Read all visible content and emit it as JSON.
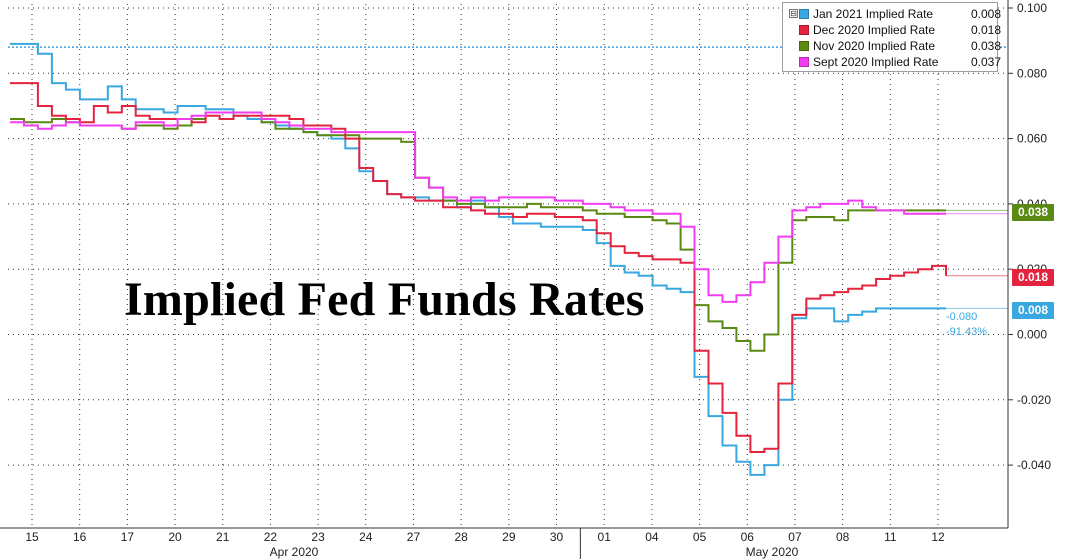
{
  "chart_data": {
    "type": "line",
    "title": "Implied Fed Funds Rates",
    "xlabel": "",
    "ylabel": "",
    "ylim": [
      -0.05,
      0.1
    ],
    "y_ticks": [
      "0.100",
      "0.080",
      "0.060",
      "0.040",
      "0.020",
      "0.000",
      "-0.020",
      "-0.040"
    ],
    "x_tick_labels": [
      "15",
      "16",
      "17",
      "20",
      "21",
      "22",
      "23",
      "24",
      "27",
      "28",
      "29",
      "30",
      "01",
      "04",
      "05",
      "06",
      "07",
      "08",
      "11",
      "12"
    ],
    "month_labels": [
      "Apr 2020",
      "May 2020"
    ],
    "reference_line": {
      "value": 0.088,
      "color": "#3aa0e6",
      "style": "dotted"
    },
    "legend_position": "top-right",
    "grid": true,
    "series": [
      {
        "name": "Jan 2021 Implied Rate",
        "last_value": "0.008",
        "color": "#39a7e0",
        "values": [
          0.089,
          0.089,
          0.086,
          0.077,
          0.075,
          0.072,
          0.072,
          0.076,
          0.072,
          0.069,
          0.069,
          0.068,
          0.07,
          0.07,
          0.069,
          0.069,
          0.067,
          0.066,
          0.065,
          0.064,
          0.063,
          0.062,
          0.061,
          0.06,
          0.057,
          0.05,
          0.047,
          0.043,
          0.042,
          0.042,
          0.041,
          0.041,
          0.039,
          0.041,
          0.039,
          0.036,
          0.034,
          0.034,
          0.033,
          0.033,
          0.033,
          0.032,
          0.028,
          0.021,
          0.019,
          0.018,
          0.015,
          0.014,
          0.013,
          -0.013,
          -0.025,
          -0.034,
          -0.039,
          -0.043,
          -0.04,
          -0.02,
          0.005,
          0.008,
          0.008,
          0.004,
          0.006,
          0.007,
          0.008,
          0.008,
          0.008,
          0.008,
          0.008,
          0.008
        ]
      },
      {
        "name": "Dec 2020 Implied Rate",
        "last_value": "0.018",
        "color": "#e4233f",
        "values": [
          0.077,
          0.077,
          0.07,
          0.067,
          0.066,
          0.065,
          0.07,
          0.068,
          0.07,
          0.067,
          0.066,
          0.066,
          0.066,
          0.065,
          0.067,
          0.066,
          0.067,
          0.067,
          0.067,
          0.067,
          0.066,
          0.064,
          0.064,
          0.063,
          0.06,
          0.051,
          0.047,
          0.043,
          0.042,
          0.041,
          0.041,
          0.039,
          0.039,
          0.038,
          0.037,
          0.037,
          0.036,
          0.037,
          0.037,
          0.036,
          0.036,
          0.035,
          0.031,
          0.027,
          0.025,
          0.024,
          0.023,
          0.023,
          0.022,
          -0.005,
          -0.015,
          -0.024,
          -0.031,
          -0.036,
          -0.035,
          -0.015,
          0.006,
          0.011,
          0.012,
          0.013,
          0.014,
          0.015,
          0.017,
          0.018,
          0.019,
          0.02,
          0.021,
          0.018
        ]
      },
      {
        "name": "Nov 2020 Implied Rate",
        "last_value": "0.038",
        "color": "#5b8a14",
        "values": [
          0.066,
          0.065,
          0.065,
          0.066,
          0.065,
          0.064,
          0.064,
          0.064,
          0.063,
          0.064,
          0.064,
          0.063,
          0.064,
          0.066,
          0.068,
          0.068,
          0.068,
          0.068,
          0.065,
          0.063,
          0.063,
          0.062,
          0.061,
          0.061,
          0.061,
          0.06,
          0.06,
          0.06,
          0.059,
          0.048,
          0.045,
          0.041,
          0.04,
          0.04,
          0.039,
          0.039,
          0.039,
          0.04,
          0.039,
          0.039,
          0.039,
          0.038,
          0.037,
          0.037,
          0.036,
          0.036,
          0.035,
          0.034,
          0.026,
          0.009,
          0.004,
          0.002,
          -0.002,
          -0.005,
          0.0,
          0.022,
          0.035,
          0.036,
          0.036,
          0.035,
          0.038,
          0.038,
          0.038,
          0.038,
          0.038,
          0.038,
          0.038,
          0.038
        ]
      },
      {
        "name": "Sept 2020 Implied Rate",
        "last_value": "0.037",
        "color": "#f23cf1",
        "values": [
          0.065,
          0.064,
          0.063,
          0.064,
          0.065,
          0.064,
          0.064,
          0.064,
          0.063,
          0.065,
          0.065,
          0.064,
          0.066,
          0.067,
          0.068,
          0.068,
          0.068,
          0.068,
          0.066,
          0.065,
          0.064,
          0.063,
          0.063,
          0.062,
          0.062,
          0.062,
          0.062,
          0.062,
          0.062,
          0.048,
          0.045,
          0.042,
          0.041,
          0.042,
          0.041,
          0.042,
          0.042,
          0.042,
          0.042,
          0.041,
          0.041,
          0.04,
          0.04,
          0.039,
          0.038,
          0.038,
          0.037,
          0.037,
          0.033,
          0.02,
          0.012,
          0.01,
          0.012,
          0.016,
          0.022,
          0.03,
          0.038,
          0.039,
          0.04,
          0.04,
          0.041,
          0.039,
          0.038,
          0.038,
          0.037,
          0.037,
          0.037,
          0.037
        ]
      }
    ]
  },
  "legend": {
    "toggle_icon": "collapse-toggle-icon",
    "items": [
      {
        "label": "Jan 2021 Implied Rate",
        "value": "0.008",
        "color": "#39a7e0"
      },
      {
        "label": "Dec 2020 Implied Rate",
        "value": "0.018",
        "color": "#e4233f"
      },
      {
        "label": "Nov 2020 Implied Rate",
        "value": "0.038",
        "color": "#5b8a14"
      },
      {
        "label": "Sept 2020 Implied Rate",
        "value": "0.037",
        "color": "#f23cf1"
      }
    ]
  },
  "tags": [
    {
      "text": "0.038",
      "color": "#5b8a14"
    },
    {
      "text": "0.018",
      "color": "#e4233f"
    },
    {
      "text": "0.008",
      "color": "#39a7e0"
    }
  ],
  "annotation": {
    "change": "-0.080",
    "pct": "-91.43%"
  }
}
